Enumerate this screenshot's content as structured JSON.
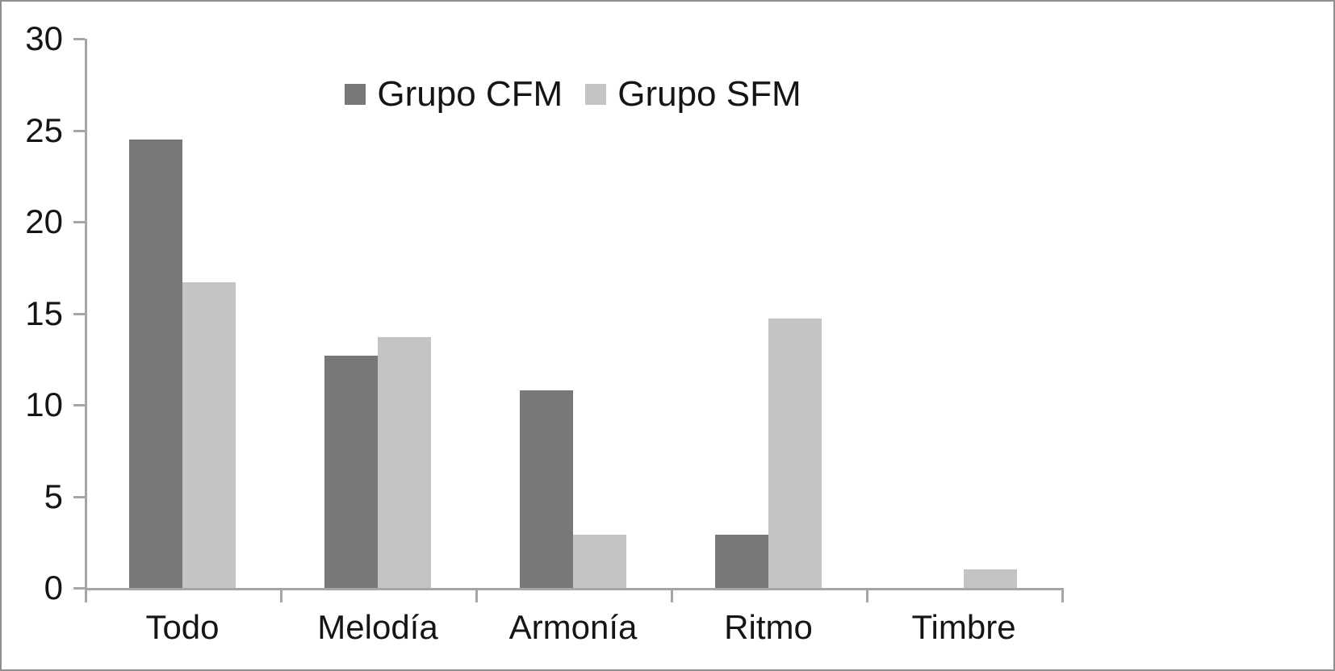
{
  "figure": {
    "type_label": "grouped-bar-chart"
  },
  "chart_data": {
    "type": "bar",
    "title": "",
    "xlabel": "",
    "ylabel": "",
    "categories": [
      "Todo",
      "Melodía",
      "Armonía",
      "Ritmo",
      "Timbre"
    ],
    "series": [
      {
        "name": "Grupo CFM",
        "color": "#787878",
        "values": [
          24.5,
          12.7,
          10.8,
          2.9,
          0
        ]
      },
      {
        "name": "Grupo SFM",
        "color": "#c4c4c4",
        "values": [
          16.7,
          13.7,
          2.9,
          14.7,
          1.0
        ]
      }
    ],
    "ylim": [
      0,
      30
    ],
    "yticks": [
      0,
      5,
      10,
      15,
      20,
      25,
      30
    ],
    "grid": false,
    "legend_position": "top-center",
    "axis_color": "#a6a6a6",
    "text_color": "#151515",
    "background_color": "#ffffff",
    "border_color": "#8f8f8f"
  }
}
